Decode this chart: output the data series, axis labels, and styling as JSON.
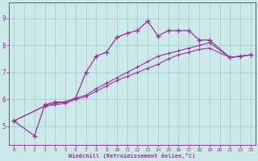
{
  "background_color": "#cce8e8",
  "plot_bg_color": "#cce8e8",
  "grid_color": "#99cccc",
  "line_color": "#993399",
  "xlabel": "Windchill (Refroidissement éolien,°C)",
  "xlabel_color": "#993399",
  "tick_color": "#993399",
  "spine_color": "#993399",
  "xlim": [
    -0.5,
    23.5
  ],
  "ylim": [
    4.3,
    9.6
  ],
  "yticks": [
    5,
    6,
    7,
    8,
    9
  ],
  "xticks": [
    0,
    1,
    2,
    3,
    4,
    5,
    6,
    7,
    8,
    9,
    10,
    11,
    12,
    13,
    14,
    15,
    16,
    17,
    18,
    19,
    20,
    21,
    22,
    23
  ],
  "line1_x": [
    0,
    2,
    3,
    4,
    5,
    6,
    7,
    8,
    9,
    10,
    11,
    12,
    13,
    14,
    15,
    16,
    17,
    18,
    19,
    21,
    22,
    23
  ],
  "line1_y": [
    5.2,
    4.65,
    5.8,
    5.9,
    5.9,
    6.05,
    7.0,
    7.6,
    7.75,
    8.3,
    8.45,
    8.55,
    8.9,
    8.35,
    8.55,
    8.55,
    8.55,
    8.2,
    8.2,
    7.55,
    7.6,
    7.65
  ],
  "line2_x": [
    0,
    3,
    4,
    5,
    6,
    7,
    8,
    9,
    10,
    11,
    12,
    13,
    14,
    15,
    16,
    17,
    18,
    19,
    21,
    22,
    23
  ],
  "line2_y": [
    5.2,
    5.75,
    5.8,
    5.85,
    6.0,
    6.1,
    6.3,
    6.5,
    6.7,
    6.85,
    7.0,
    7.15,
    7.3,
    7.5,
    7.65,
    7.75,
    7.85,
    7.9,
    7.55,
    7.6,
    7.65
  ],
  "line3_x": [
    0,
    3,
    4,
    5,
    6,
    7,
    8,
    9,
    10,
    11,
    12,
    13,
    14,
    15,
    16,
    17,
    18,
    19,
    21,
    22,
    23
  ],
  "line3_y": [
    5.2,
    5.75,
    5.85,
    5.9,
    6.05,
    6.15,
    6.4,
    6.6,
    6.8,
    7.0,
    7.2,
    7.4,
    7.6,
    7.7,
    7.8,
    7.9,
    8.0,
    8.1,
    7.55,
    7.6,
    7.65
  ]
}
